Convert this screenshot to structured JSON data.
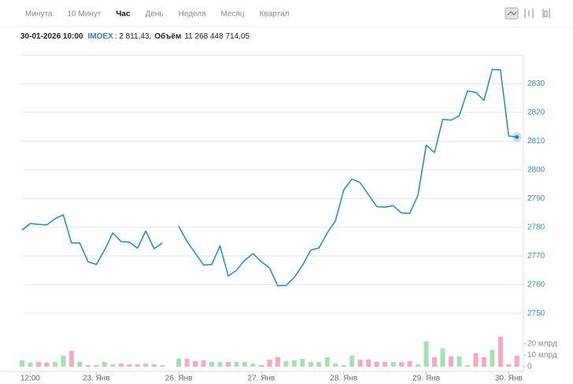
{
  "toolbar": {
    "tabs": [
      "Минута",
      "10 Минут",
      "Час",
      "День",
      "Неделя",
      "Месяц",
      "Квартал"
    ],
    "active_tab": 2
  },
  "info": {
    "datetime": "30-01-2026 10:00",
    "ticker": "IMOEX",
    "price": ": 2 811,43,",
    "volume_label": "Объём",
    "volume": "11 268 448 714,05"
  },
  "chart_data": [
    {
      "type": "line",
      "color": "#2389b5",
      "grid": true,
      "categories": [
        null,
        "12:00",
        null,
        null,
        null,
        null,
        null,
        null,
        null,
        "23. Янв",
        null,
        null,
        null,
        null,
        null,
        null,
        null,
        null,
        null,
        "26. Янв",
        null,
        null,
        null,
        null,
        null,
        null,
        null,
        null,
        null,
        "27. Янв",
        null,
        null,
        null,
        null,
        null,
        null,
        null,
        null,
        null,
        "28. Янв",
        null,
        null,
        null,
        null,
        null,
        null,
        null,
        null,
        null,
        "29. Янв",
        null,
        null,
        null,
        null,
        null,
        null,
        null,
        null,
        null,
        "30. Янв",
        null
      ],
      "values": [
        2779,
        2781.3,
        2781,
        2780.8,
        2783,
        2784.3,
        2774.5,
        2774.5,
        2768,
        2767,
        2772,
        2778,
        2775,
        2774.8,
        2772.7,
        2778.7,
        2772.5,
        2774.5,
        null,
        2780.3,
        2775,
        2771,
        2766.8,
        2767,
        2773.5,
        2763,
        2765,
        2768.5,
        2770.8,
        2768,
        2765.8,
        2759.6,
        2759.7,
        2762.5,
        2766.7,
        2772,
        2772.8,
        2778,
        2782.3,
        2793,
        2796.8,
        2795.5,
        2791.3,
        2787.2,
        2787,
        2787.5,
        2785,
        2784.8,
        2791.2,
        2808.6,
        2806,
        2817.6,
        2817.3,
        2818.8,
        2827.5,
        2827,
        2824.2,
        2835,
        2834.8,
        2811.8,
        2811.43
      ],
      "ylim": [
        2744,
        2840
      ],
      "yticks": [
        2750,
        2760,
        2770,
        2780,
        2790,
        2800,
        2810,
        2820,
        2830
      ]
    },
    {
      "type": "bar",
      "up_color": "#a6dfb0",
      "down_color": "#f5a9c2",
      "values": [
        5500000000.0,
        3500000000.0,
        4200000000.0,
        3500000000.0,
        4200000000.0,
        9700000000.0,
        13800000000.0,
        4200000000.0,
        1400000000.0,
        1400000000.0,
        4200000000.0,
        2100000000.0,
        2800000000.0,
        2100000000.0,
        2100000000.0,
        2800000000.0,
        2100000000.0,
        1400000000.0,
        null,
        7000000000.0,
        6900000000.0,
        4800000000.0,
        5500000000.0,
        4100000000.0,
        4100000000.0,
        4100000000.0,
        4100000000.0,
        4100000000.0,
        2800000000.0,
        1500000000.0,
        6200000000.0,
        8300000000.0,
        4800000000.0,
        5500000000.0,
        6900000000.0,
        4100000000.0,
        4100000000.0,
        8300000000.0,
        2800000000.0,
        1400000000.0,
        9700000000.0,
        6200000000.0,
        6200000000.0,
        4100000000.0,
        4100000000.0,
        4100000000.0,
        4100000000.0,
        4800000000.0,
        2100000000.0,
        22000000000.0,
        8300000000.0,
        16000000000.0,
        9000000000.0,
        9000000000.0,
        1400000000.0,
        11700000000.0,
        8300000000.0,
        14500000000.0,
        26000000000.0,
        2100000000.0,
        9700000000.0
      ],
      "ylim": [
        0,
        28000000000.0
      ],
      "yticks": [
        0,
        {
          "value": 10000000000.0,
          "label": "10 млрд"
        },
        {
          "value": 20000000000.0,
          "label": "20 млрд"
        }
      ]
    }
  ]
}
